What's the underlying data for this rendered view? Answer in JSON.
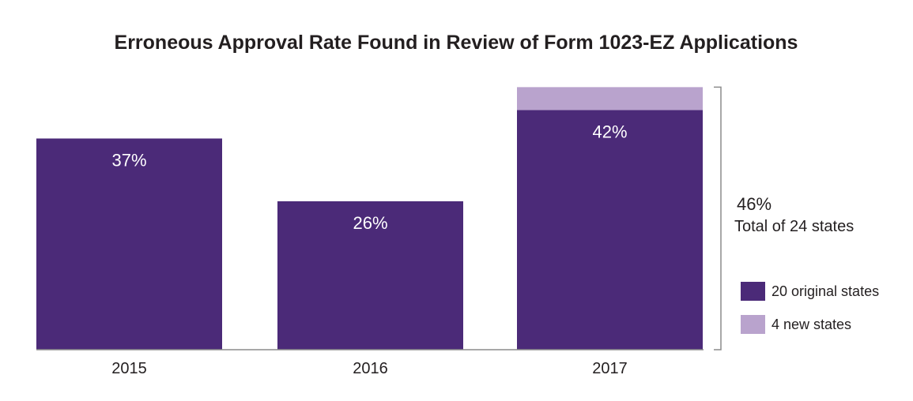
{
  "chart_data": {
    "type": "bar",
    "stacked": true,
    "title": "Erroneous Approval Rate Found in Review of Form 1023-EZ Applications",
    "categories": [
      "2015",
      "2016",
      "2017"
    ],
    "series": [
      {
        "name": "20 original states",
        "values": [
          37,
          26,
          42
        ],
        "labels": [
          "37%",
          "26%",
          "42%"
        ],
        "color": "#4b2a78"
      },
      {
        "name": "4 new states",
        "values": [
          0,
          0,
          4
        ],
        "color": "#b9a3cd"
      }
    ],
    "annotation": {
      "value": "46%",
      "text": "Total of 24 states"
    },
    "ylim": [
      0,
      52
    ],
    "grid": false,
    "legend_position": "right"
  }
}
